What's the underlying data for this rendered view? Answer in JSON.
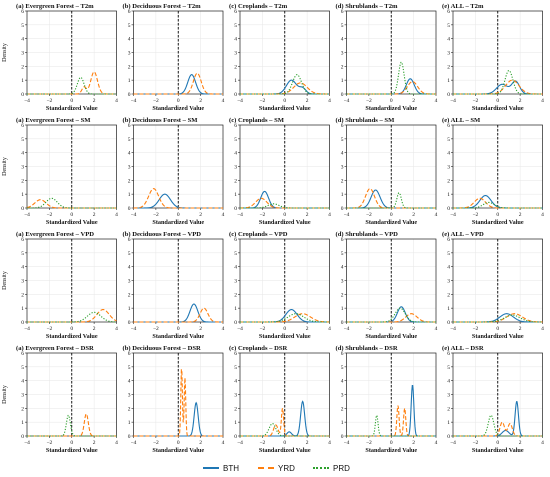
{
  "legend": {
    "items": [
      {
        "key": "BTH",
        "label": "BTH",
        "color": "#1f77b4",
        "dash": "solid"
      },
      {
        "key": "YRD",
        "label": "YRD",
        "color": "#ff7f0e",
        "dash": "dashed"
      },
      {
        "key": "PRD",
        "label": "PRD",
        "color": "#2ca02c",
        "dash": "dotted"
      }
    ]
  },
  "axis_common": {
    "xlabel": "Standardized Value",
    "ylabel": "Density",
    "xlim": [
      -4,
      4
    ],
    "ylim": [
      0,
      6
    ],
    "xticks": [
      -4,
      -2,
      0,
      2,
      4
    ],
    "yticks": [
      0,
      1,
      2,
      3,
      4,
      5,
      6
    ],
    "vline_x": 0,
    "grid": true
  },
  "chart_data": [
    {
      "type": "line",
      "title": "(a) Evergreen Forest – T2m",
      "xlabel": "Standardized Value",
      "ylabel": "Density",
      "xlim": [
        -4,
        4
      ],
      "ylim": [
        0,
        6
      ],
      "series": [
        {
          "name": "YRD",
          "peaks": [
            [
              2.0,
              1.6,
              0.3
            ],
            [
              1.1,
              0.5,
              0.2
            ]
          ]
        },
        {
          "name": "PRD",
          "peaks": [
            [
              0.8,
              1.2,
              0.3
            ]
          ]
        }
      ]
    },
    {
      "type": "line",
      "title": "(b) Deciduous Forest – T2m",
      "xlabel": "Standardized Value",
      "ylabel": "Density",
      "xlim": [
        -4,
        4
      ],
      "ylim": [
        0,
        6
      ],
      "series": [
        {
          "name": "BTH",
          "peaks": [
            [
              1.2,
              1.4,
              0.35
            ]
          ]
        },
        {
          "name": "YRD",
          "peaks": [
            [
              1.7,
              1.5,
              0.35
            ]
          ]
        }
      ]
    },
    {
      "type": "line",
      "title": "(c) Croplands – T2m",
      "xlabel": "Standardized Value",
      "ylabel": "Density",
      "xlim": [
        -4,
        4
      ],
      "ylim": [
        0,
        6
      ],
      "series": [
        {
          "name": "BTH",
          "peaks": [
            [
              0.6,
              1.0,
              0.45
            ],
            [
              1.6,
              0.4,
              0.3
            ]
          ]
        },
        {
          "name": "YRD",
          "peaks": [
            [
              1.4,
              0.8,
              0.6
            ]
          ]
        },
        {
          "name": "PRD",
          "peaks": [
            [
              1.1,
              1.4,
              0.4
            ]
          ]
        }
      ]
    },
    {
      "type": "line",
      "title": "(d) Shrublands – T2m",
      "xlabel": "Standardized Value",
      "ylabel": "Density",
      "xlim": [
        -4,
        4
      ],
      "ylim": [
        0,
        6
      ],
      "series": [
        {
          "name": "BTH",
          "peaks": [
            [
              1.7,
              1.1,
              0.35
            ]
          ]
        },
        {
          "name": "YRD",
          "peaks": [
            [
              1.9,
              0.9,
              0.45
            ]
          ]
        },
        {
          "name": "PRD",
          "peaks": [
            [
              0.9,
              2.3,
              0.25
            ]
          ]
        }
      ]
    },
    {
      "type": "line",
      "title": "(e) ALL – T2m",
      "xlabel": "Standardized Value",
      "ylabel": "Density",
      "xlim": [
        -4,
        4
      ],
      "ylim": [
        0,
        6
      ],
      "series": [
        {
          "name": "BTH",
          "peaks": [
            [
              0.4,
              0.7,
              0.5
            ],
            [
              1.6,
              0.9,
              0.35
            ]
          ]
        },
        {
          "name": "YRD",
          "peaks": [
            [
              1.3,
              1.0,
              0.6
            ]
          ]
        },
        {
          "name": "PRD",
          "peaks": [
            [
              1.0,
              1.7,
              0.35
            ]
          ]
        }
      ]
    },
    {
      "type": "line",
      "title": "(a) Evergreen Forest – SM",
      "xlabel": "Standardized Value",
      "ylabel": "Density",
      "xlim": [
        -4,
        4
      ],
      "ylim": [
        0,
        6
      ],
      "series": [
        {
          "name": "YRD",
          "peaks": [
            [
              -2.8,
              0.6,
              0.5
            ]
          ]
        },
        {
          "name": "PRD",
          "peaks": [
            [
              -1.8,
              0.7,
              0.5
            ]
          ]
        }
      ]
    },
    {
      "type": "line",
      "title": "(b) Deciduous Forest – SM",
      "xlabel": "Standardized Value",
      "ylabel": "Density",
      "xlim": [
        -4,
        4
      ],
      "ylim": [
        0,
        6
      ],
      "series": [
        {
          "name": "BTH",
          "peaks": [
            [
              -1.2,
              1.0,
              0.5
            ]
          ]
        },
        {
          "name": "YRD",
          "peaks": [
            [
              -2.2,
              1.4,
              0.45
            ]
          ]
        }
      ]
    },
    {
      "type": "line",
      "title": "(c) Croplands – SM",
      "xlabel": "Standardized Value",
      "ylabel": "Density",
      "xlim": [
        -4,
        4
      ],
      "ylim": [
        0,
        6
      ],
      "series": [
        {
          "name": "BTH",
          "peaks": [
            [
              -1.8,
              1.2,
              0.35
            ]
          ]
        },
        {
          "name": "YRD",
          "peaks": [
            [
              -2.1,
              0.7,
              0.5
            ]
          ]
        },
        {
          "name": "PRD",
          "peaks": [
            [
              -1.0,
              0.3,
              0.5
            ]
          ]
        }
      ]
    },
    {
      "type": "line",
      "title": "(d) Shrublands – SM",
      "xlabel": "Standardized Value",
      "ylabel": "Density",
      "xlim": [
        -4,
        4
      ],
      "ylim": [
        0,
        6
      ],
      "series": [
        {
          "name": "BTH",
          "peaks": [
            [
              -1.4,
              1.3,
              0.4
            ]
          ]
        },
        {
          "name": "YRD",
          "peaks": [
            [
              -1.9,
              1.4,
              0.4
            ]
          ]
        },
        {
          "name": "PRD",
          "peaks": [
            [
              0.7,
              1.1,
              0.2
            ]
          ]
        }
      ]
    },
    {
      "type": "line",
      "title": "(e) ALL – SM",
      "xlabel": "Standardized Value",
      "ylabel": "Density",
      "xlim": [
        -4,
        4
      ],
      "ylim": [
        0,
        6
      ],
      "series": [
        {
          "name": "BTH",
          "peaks": [
            [
              -1.1,
              0.9,
              0.5
            ]
          ]
        },
        {
          "name": "YRD",
          "peaks": [
            [
              -1.6,
              0.7,
              0.5
            ]
          ]
        },
        {
          "name": "PRD",
          "peaks": [
            [
              -0.8,
              0.4,
              0.5
            ]
          ]
        }
      ]
    },
    {
      "type": "line",
      "title": "(a) Evergreen Forest – VPD",
      "xlabel": "Standardized Value",
      "ylabel": "Density",
      "xlim": [
        -4,
        4
      ],
      "ylim": [
        0,
        6
      ],
      "series": [
        {
          "name": "YRD",
          "peaks": [
            [
              2.8,
              0.9,
              0.55
            ]
          ]
        },
        {
          "name": "PRD",
          "peaks": [
            [
              2.0,
              0.7,
              0.6
            ]
          ]
        }
      ]
    },
    {
      "type": "line",
      "title": "(b) Deciduous Forest – VPD",
      "xlabel": "Standardized Value",
      "ylabel": "Density",
      "xlim": [
        -4,
        4
      ],
      "ylim": [
        0,
        6
      ],
      "series": [
        {
          "name": "BTH",
          "peaks": [
            [
              1.4,
              1.3,
              0.35
            ]
          ]
        },
        {
          "name": "YRD",
          "peaks": [
            [
              2.3,
              1.0,
              0.35
            ]
          ]
        }
      ]
    },
    {
      "type": "line",
      "title": "(c) Croplands – VPD",
      "xlabel": "Standardized Value",
      "ylabel": "Density",
      "xlim": [
        -4,
        4
      ],
      "ylim": [
        0,
        6
      ],
      "series": [
        {
          "name": "BTH",
          "peaks": [
            [
              0.6,
              0.9,
              0.5
            ]
          ]
        },
        {
          "name": "YRD",
          "peaks": [
            [
              1.6,
              0.6,
              0.7
            ]
          ]
        },
        {
          "name": "PRD",
          "peaks": [
            [
              1.0,
              0.6,
              0.7
            ]
          ]
        }
      ]
    },
    {
      "type": "line",
      "title": "(d) Shrublands – VPD",
      "xlabel": "Standardized Value",
      "ylabel": "Density",
      "xlim": [
        -4,
        4
      ],
      "ylim": [
        0,
        6
      ],
      "series": [
        {
          "name": "BTH",
          "peaks": [
            [
              0.9,
              1.1,
              0.35
            ]
          ]
        },
        {
          "name": "YRD",
          "peaks": [
            [
              1.8,
              0.6,
              0.5
            ]
          ]
        },
        {
          "name": "PRD",
          "peaks": [
            [
              0.8,
              1.0,
              0.45
            ]
          ]
        }
      ]
    },
    {
      "type": "line",
      "title": "(e) ALL – VPD",
      "xlabel": "Standardized Value",
      "ylabel": "Density",
      "xlim": [
        -4,
        4
      ],
      "ylim": [
        0,
        6
      ],
      "series": [
        {
          "name": "BTH",
          "peaks": [
            [
              0.8,
              0.6,
              0.6
            ]
          ]
        },
        {
          "name": "YRD",
          "peaks": [
            [
              1.5,
              0.6,
              0.7
            ]
          ]
        },
        {
          "name": "PRD",
          "peaks": [
            [
              1.3,
              0.5,
              0.7
            ]
          ]
        }
      ]
    },
    {
      "type": "line",
      "title": "(a) Evergreen Forest – DSR",
      "xlabel": "Standardized Value",
      "ylabel": "Density",
      "xlim": [
        -4,
        4
      ],
      "ylim": [
        0,
        6
      ],
      "series": [
        {
          "name": "YRD",
          "peaks": [
            [
              1.3,
              1.6,
              0.18
            ]
          ]
        },
        {
          "name": "PRD",
          "peaks": [
            [
              -0.3,
              1.5,
              0.18
            ]
          ]
        }
      ]
    },
    {
      "type": "line",
      "title": "(b) Deciduous Forest – DSR",
      "xlabel": "Standardized Value",
      "ylabel": "Density",
      "xlim": [
        -4,
        4
      ],
      "ylim": [
        0,
        6
      ],
      "series": [
        {
          "name": "BTH",
          "peaks": [
            [
              1.6,
              2.4,
              0.18
            ]
          ]
        },
        {
          "name": "YRD",
          "peaks": [
            [
              0.3,
              5.0,
              0.07
            ],
            [
              0.6,
              4.2,
              0.07
            ]
          ]
        }
      ]
    },
    {
      "type": "line",
      "title": "(c) Croplands – DSR",
      "xlabel": "Standardized Value",
      "ylabel": "Density",
      "xlim": [
        -4,
        4
      ],
      "ylim": [
        0,
        6
      ],
      "series": [
        {
          "name": "BTH",
          "peaks": [
            [
              1.6,
              2.5,
              0.18
            ],
            [
              0.4,
              0.3,
              0.2
            ]
          ]
        },
        {
          "name": "YRD",
          "peaks": [
            [
              -0.2,
              2.0,
              0.1
            ],
            [
              -0.8,
              0.8,
              0.2
            ]
          ]
        },
        {
          "name": "PRD",
          "peaks": [
            [
              -1.1,
              0.9,
              0.3
            ]
          ]
        }
      ]
    },
    {
      "type": "line",
      "title": "(d) Shrublands – DSR",
      "xlabel": "Standardized Value",
      "ylabel": "Density",
      "xlim": [
        -4,
        4
      ],
      "ylim": [
        0,
        6
      ],
      "series": [
        {
          "name": "BTH",
          "peaks": [
            [
              1.9,
              3.7,
              0.12
            ]
          ]
        },
        {
          "name": "YRD",
          "peaks": [
            [
              0.6,
              2.2,
              0.1
            ],
            [
              1.2,
              2.0,
              0.1
            ]
          ]
        },
        {
          "name": "PRD",
          "peaks": [
            [
              -1.3,
              1.5,
              0.12
            ]
          ]
        }
      ]
    },
    {
      "type": "line",
      "title": "(e) ALL – DSR",
      "xlabel": "Standardized Value",
      "ylabel": "Density",
      "xlim": [
        -4,
        4
      ],
      "ylim": [
        0,
        6
      ],
      "series": [
        {
          "name": "BTH",
          "peaks": [
            [
              1.7,
              2.5,
              0.15
            ],
            [
              0.7,
              0.4,
              0.3
            ]
          ]
        },
        {
          "name": "YRD",
          "peaks": [
            [
              0.4,
              1.0,
              0.2
            ],
            [
              1.1,
              0.9,
              0.2
            ]
          ]
        },
        {
          "name": "PRD",
          "peaks": [
            [
              -0.6,
              1.5,
              0.25
            ]
          ]
        }
      ]
    }
  ]
}
